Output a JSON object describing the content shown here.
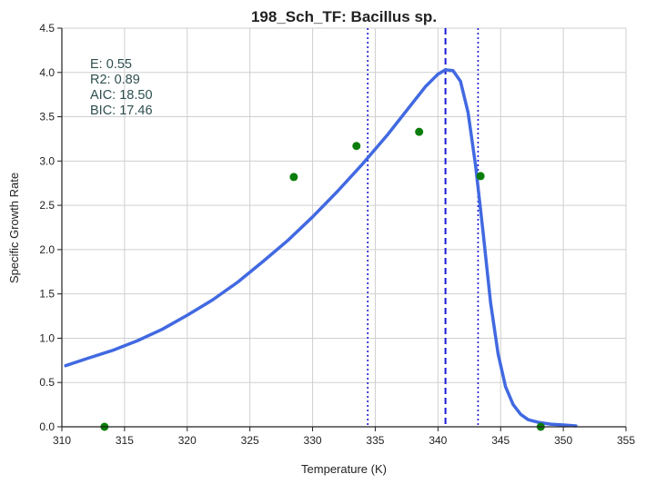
{
  "chart_data": {
    "type": "scatter",
    "title": "198_Sch_TF: Bacillus sp.",
    "xlabel": "Temperature (K)",
    "ylabel": "Specific Growth Rate",
    "xlim": [
      310,
      355
    ],
    "ylim": [
      0.0,
      4.5
    ],
    "x_ticks": [
      310,
      315,
      320,
      325,
      330,
      335,
      340,
      345,
      350,
      355
    ],
    "x_tick_labels": [
      "310",
      "315",
      "320",
      "325",
      "330",
      "335",
      "340",
      "345",
      "350",
      "355"
    ],
    "y_ticks": [
      0.0,
      0.5,
      1.0,
      1.5,
      2.0,
      2.5,
      3.0,
      3.5,
      4.0,
      4.5
    ],
    "y_tick_labels": [
      "0.0",
      "0.5",
      "1.0",
      "1.5",
      "2.0",
      "2.5",
      "3.0",
      "3.5",
      "4.0",
      "4.5"
    ],
    "grid": true,
    "points": {
      "color": "#0a7d0a",
      "x": [
        313.4,
        328.5,
        333.5,
        338.5,
        343.4,
        348.2
      ],
      "y": [
        0.0,
        2.82,
        3.17,
        3.33,
        2.83,
        0.0
      ]
    },
    "fit_curve": {
      "color": "#4169e1",
      "x": [
        310.3,
        312,
        314,
        316,
        318,
        320,
        322,
        324,
        326,
        328,
        330,
        332,
        334,
        336,
        337,
        338,
        339,
        340,
        340.6,
        341.2,
        341.8,
        342.4,
        343,
        343.6,
        344.2,
        344.8,
        345.4,
        346,
        346.6,
        347.2,
        348,
        349,
        350,
        351
      ],
      "y": [
        0.69,
        0.77,
        0.86,
        0.97,
        1.1,
        1.26,
        1.43,
        1.63,
        1.86,
        2.1,
        2.37,
        2.66,
        2.97,
        3.3,
        3.48,
        3.66,
        3.84,
        3.98,
        4.03,
        4.02,
        3.9,
        3.55,
        2.95,
        2.2,
        1.4,
        0.82,
        0.45,
        0.25,
        0.14,
        0.08,
        0.05,
        0.03,
        0.02,
        0.01
      ]
    },
    "vlines": [
      {
        "x": 334.4,
        "style": "dotted",
        "color": "#1a1ad6"
      },
      {
        "x": 340.6,
        "style": "dashed",
        "color": "#1a1ad6"
      },
      {
        "x": 343.2,
        "style": "dotted",
        "color": "#1a1ad6"
      }
    ],
    "annotations": [
      "E:  0.55",
      "R2:  0.89",
      "AIC: 18.50",
      "BIC: 17.46"
    ]
  }
}
